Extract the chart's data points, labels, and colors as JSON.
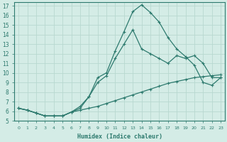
{
  "xlabel": "Humidex (Indice chaleur)",
  "bg_color": "#d4ece6",
  "line_color": "#2d7a6e",
  "grid_color": "#b8d8d0",
  "xlim": [
    -0.5,
    23.5
  ],
  "ylim": [
    5,
    17.4
  ],
  "yticks": [
    5,
    6,
    7,
    8,
    9,
    10,
    11,
    12,
    13,
    14,
    15,
    16,
    17
  ],
  "xticks": [
    0,
    1,
    2,
    3,
    4,
    5,
    6,
    7,
    8,
    9,
    10,
    11,
    12,
    13,
    14,
    15,
    16,
    17,
    18,
    19,
    20,
    21,
    22,
    23
  ],
  "line1_x": [
    0,
    1,
    2,
    3,
    4,
    5,
    6,
    7,
    8,
    9,
    10,
    11,
    12,
    13,
    14,
    15,
    16,
    17,
    18,
    19,
    20,
    21,
    22,
    23
  ],
  "line1_y": [
    6.3,
    6.1,
    5.8,
    5.5,
    5.5,
    5.5,
    5.9,
    6.1,
    6.3,
    6.5,
    6.8,
    7.1,
    7.4,
    7.7,
    8.0,
    8.3,
    8.6,
    8.9,
    9.1,
    9.3,
    9.5,
    9.6,
    9.7,
    9.8
  ],
  "line2_x": [
    0,
    1,
    2,
    3,
    4,
    5,
    6,
    7,
    8,
    9,
    10,
    11,
    12,
    13,
    14,
    15,
    16,
    17,
    18,
    19,
    20,
    21,
    22,
    23
  ],
  "line2_y": [
    6.3,
    6.1,
    5.8,
    5.5,
    5.5,
    5.5,
    5.9,
    6.3,
    7.5,
    9.0,
    9.7,
    11.5,
    13.0,
    14.5,
    12.5,
    12.0,
    11.5,
    11.0,
    11.8,
    11.5,
    11.8,
    11.0,
    9.5,
    9.5
  ],
  "line3_x": [
    0,
    1,
    2,
    3,
    4,
    5,
    6,
    7,
    8,
    9,
    10,
    11,
    12,
    13,
    14,
    15,
    16,
    17,
    18,
    19,
    20,
    21,
    22,
    23
  ],
  "line3_y": [
    6.3,
    6.1,
    5.8,
    5.5,
    5.5,
    5.5,
    5.9,
    6.5,
    7.5,
    9.5,
    10.0,
    12.3,
    14.3,
    16.4,
    17.1,
    16.3,
    15.3,
    13.7,
    12.5,
    11.7,
    10.8,
    9.0,
    8.7,
    9.5
  ]
}
